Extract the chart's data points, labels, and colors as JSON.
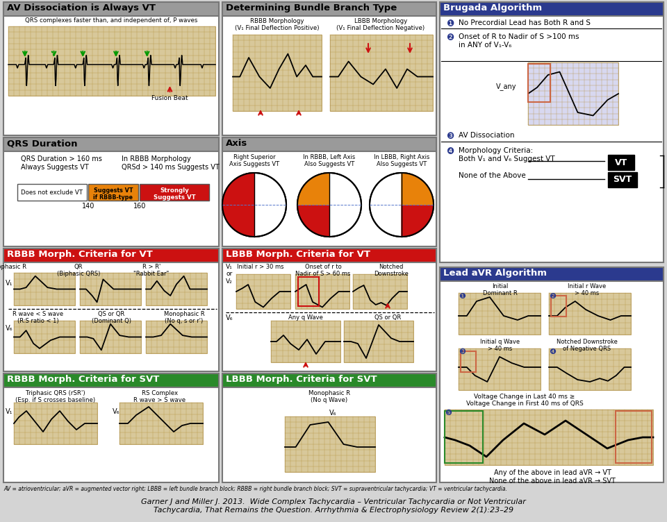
{
  "bg_color": "#d4d4d4",
  "title_blue": "#2b3a8e",
  "title_gray": "#8a8a8a",
  "red_hdr": "#cc1111",
  "green_hdr": "#2a8a2a",
  "white": "#ffffff",
  "black": "#000000",
  "orange": "#e8820a",
  "grid_tan": "#d8c89a",
  "grid_line": "#b8a060",
  "grid_light": "#e8e0d0",
  "footnote": "AV = atrioventricular; aVR = augmented vector right; LBBB = left bundle branch block; RBBB = right bundle branch block; SVT = supraventricular tachycardia; VT = ventricular tachycardia.",
  "citation_line1": "Garner J and Miller J. 2013.  Wide Complex Tachycardia – Ventricular Tachycardia or Not Ventricular",
  "citation_line2": "Tachycardia, That Remains the Question. Arrhythmia & Electrophysiology Review 2(1):23–29"
}
